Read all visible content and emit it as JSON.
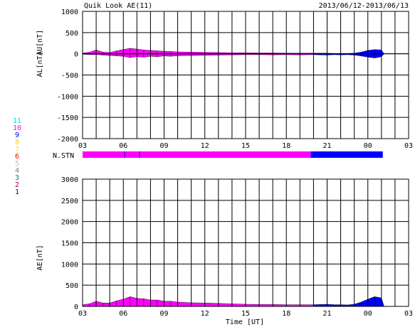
{
  "header": {
    "title": "Quik Look AE(11)",
    "date_range": "2013/06/12-2013/06/13"
  },
  "stations_legend": [
    {
      "label": "11",
      "color": "#00e0e0"
    },
    {
      "label": "10",
      "color": "#ff00ff"
    },
    {
      "label": "9",
      "color": "#0000ff"
    },
    {
      "label": "8",
      "color": "#ffd000"
    },
    {
      "label": "7",
      "color": "#e0e060"
    },
    {
      "label": "6",
      "color": "#ff0000"
    },
    {
      "label": "5",
      "color": "#c0c0c0"
    },
    {
      "label": "4",
      "color": "#808080"
    },
    {
      "label": "3",
      "color": "#008080"
    },
    {
      "label": "2",
      "color": "#a00060"
    },
    {
      "label": "1",
      "color": "#0000a0"
    }
  ],
  "colors": {
    "magenta": "#ff00ff",
    "blue": "#0000ff",
    "axis": "#000000"
  },
  "chart_data": [
    {
      "type": "area",
      "name": "AU-AL panel",
      "ylabel_top": "AU[nT]",
      "ylabel_bottom": "AL[nT]",
      "ylim": [
        -2000,
        1000
      ],
      "yticks": [
        1000,
        500,
        0,
        -500,
        -1000,
        -1500,
        -2000
      ],
      "xlim": [
        3,
        27
      ],
      "xticks": [
        "03",
        "06",
        "09",
        "12",
        "15",
        "18",
        "21",
        "00",
        "03"
      ],
      "x": [
        3,
        3.5,
        4,
        4.5,
        5,
        5.5,
        6,
        6.5,
        7,
        7.5,
        8,
        8.5,
        9,
        9.5,
        10,
        11,
        12,
        13,
        14,
        15,
        16,
        17,
        18,
        19,
        20,
        20.5,
        21,
        21.5,
        22,
        22.5,
        23,
        23.5,
        24,
        24.5,
        25,
        25.2
      ],
      "AU": [
        20,
        35,
        90,
        40,
        30,
        70,
        100,
        130,
        110,
        90,
        80,
        70,
        60,
        55,
        45,
        40,
        35,
        30,
        25,
        25,
        20,
        20,
        15,
        15,
        15,
        15,
        15,
        10,
        10,
        10,
        15,
        40,
        80,
        100,
        90,
        0
      ],
      "AL": [
        -10,
        -20,
        -15,
        -30,
        -40,
        -50,
        -60,
        -90,
        -70,
        -80,
        -60,
        -70,
        -50,
        -60,
        -45,
        -40,
        -35,
        -30,
        -25,
        -20,
        -20,
        -25,
        -20,
        -25,
        -20,
        -25,
        -30,
        -20,
        -25,
        -20,
        -30,
        -50,
        -80,
        -100,
        -70,
        0
      ],
      "color_segments": [
        {
          "from": 3,
          "to": 20,
          "color": "magenta"
        },
        {
          "from": 20,
          "to": 25.2,
          "color": "blue"
        }
      ]
    },
    {
      "type": "bar",
      "name": "station count",
      "label": "N.STN",
      "segments": [
        {
          "from": 3,
          "to": 6.1,
          "color": "magenta"
        },
        {
          "from": 6.1,
          "to": 7.2,
          "color": "magenta"
        },
        {
          "from": 7.2,
          "to": 19.8,
          "color": "magenta"
        },
        {
          "from": 19.8,
          "to": 25.1,
          "color": "blue"
        }
      ],
      "dividers": [
        6.1,
        7.2
      ]
    },
    {
      "type": "area",
      "name": "AE panel",
      "ylabel": "AE[nT]",
      "ylim": [
        0,
        3000
      ],
      "yticks": [
        3000,
        2500,
        2000,
        1500,
        1000,
        500,
        0
      ],
      "xlim": [
        3,
        27
      ],
      "xticks": [
        "03",
        "06",
        "09",
        "12",
        "15",
        "18",
        "21",
        "00",
        "03"
      ],
      "xlabel": "Time [UT]",
      "x": [
        3,
        3.5,
        4,
        4.5,
        5,
        5.5,
        6,
        6.5,
        7,
        7.5,
        8,
        8.5,
        9,
        9.5,
        10,
        11,
        12,
        13,
        14,
        15,
        16,
        17,
        18,
        19,
        20,
        20.5,
        21,
        21.5,
        22,
        22.5,
        23,
        23.5,
        24,
        24.5,
        25,
        25.2
      ],
      "values": [
        40,
        60,
        120,
        80,
        80,
        130,
        170,
        230,
        190,
        180,
        150,
        150,
        120,
        120,
        100,
        85,
        80,
        70,
        60,
        50,
        45,
        45,
        40,
        40,
        40,
        45,
        50,
        40,
        40,
        35,
        50,
        100,
        170,
        230,
        200,
        0
      ],
      "color_segments": [
        {
          "from": 3,
          "to": 20,
          "color": "magenta"
        },
        {
          "from": 20,
          "to": 25.2,
          "color": "blue"
        }
      ]
    }
  ]
}
